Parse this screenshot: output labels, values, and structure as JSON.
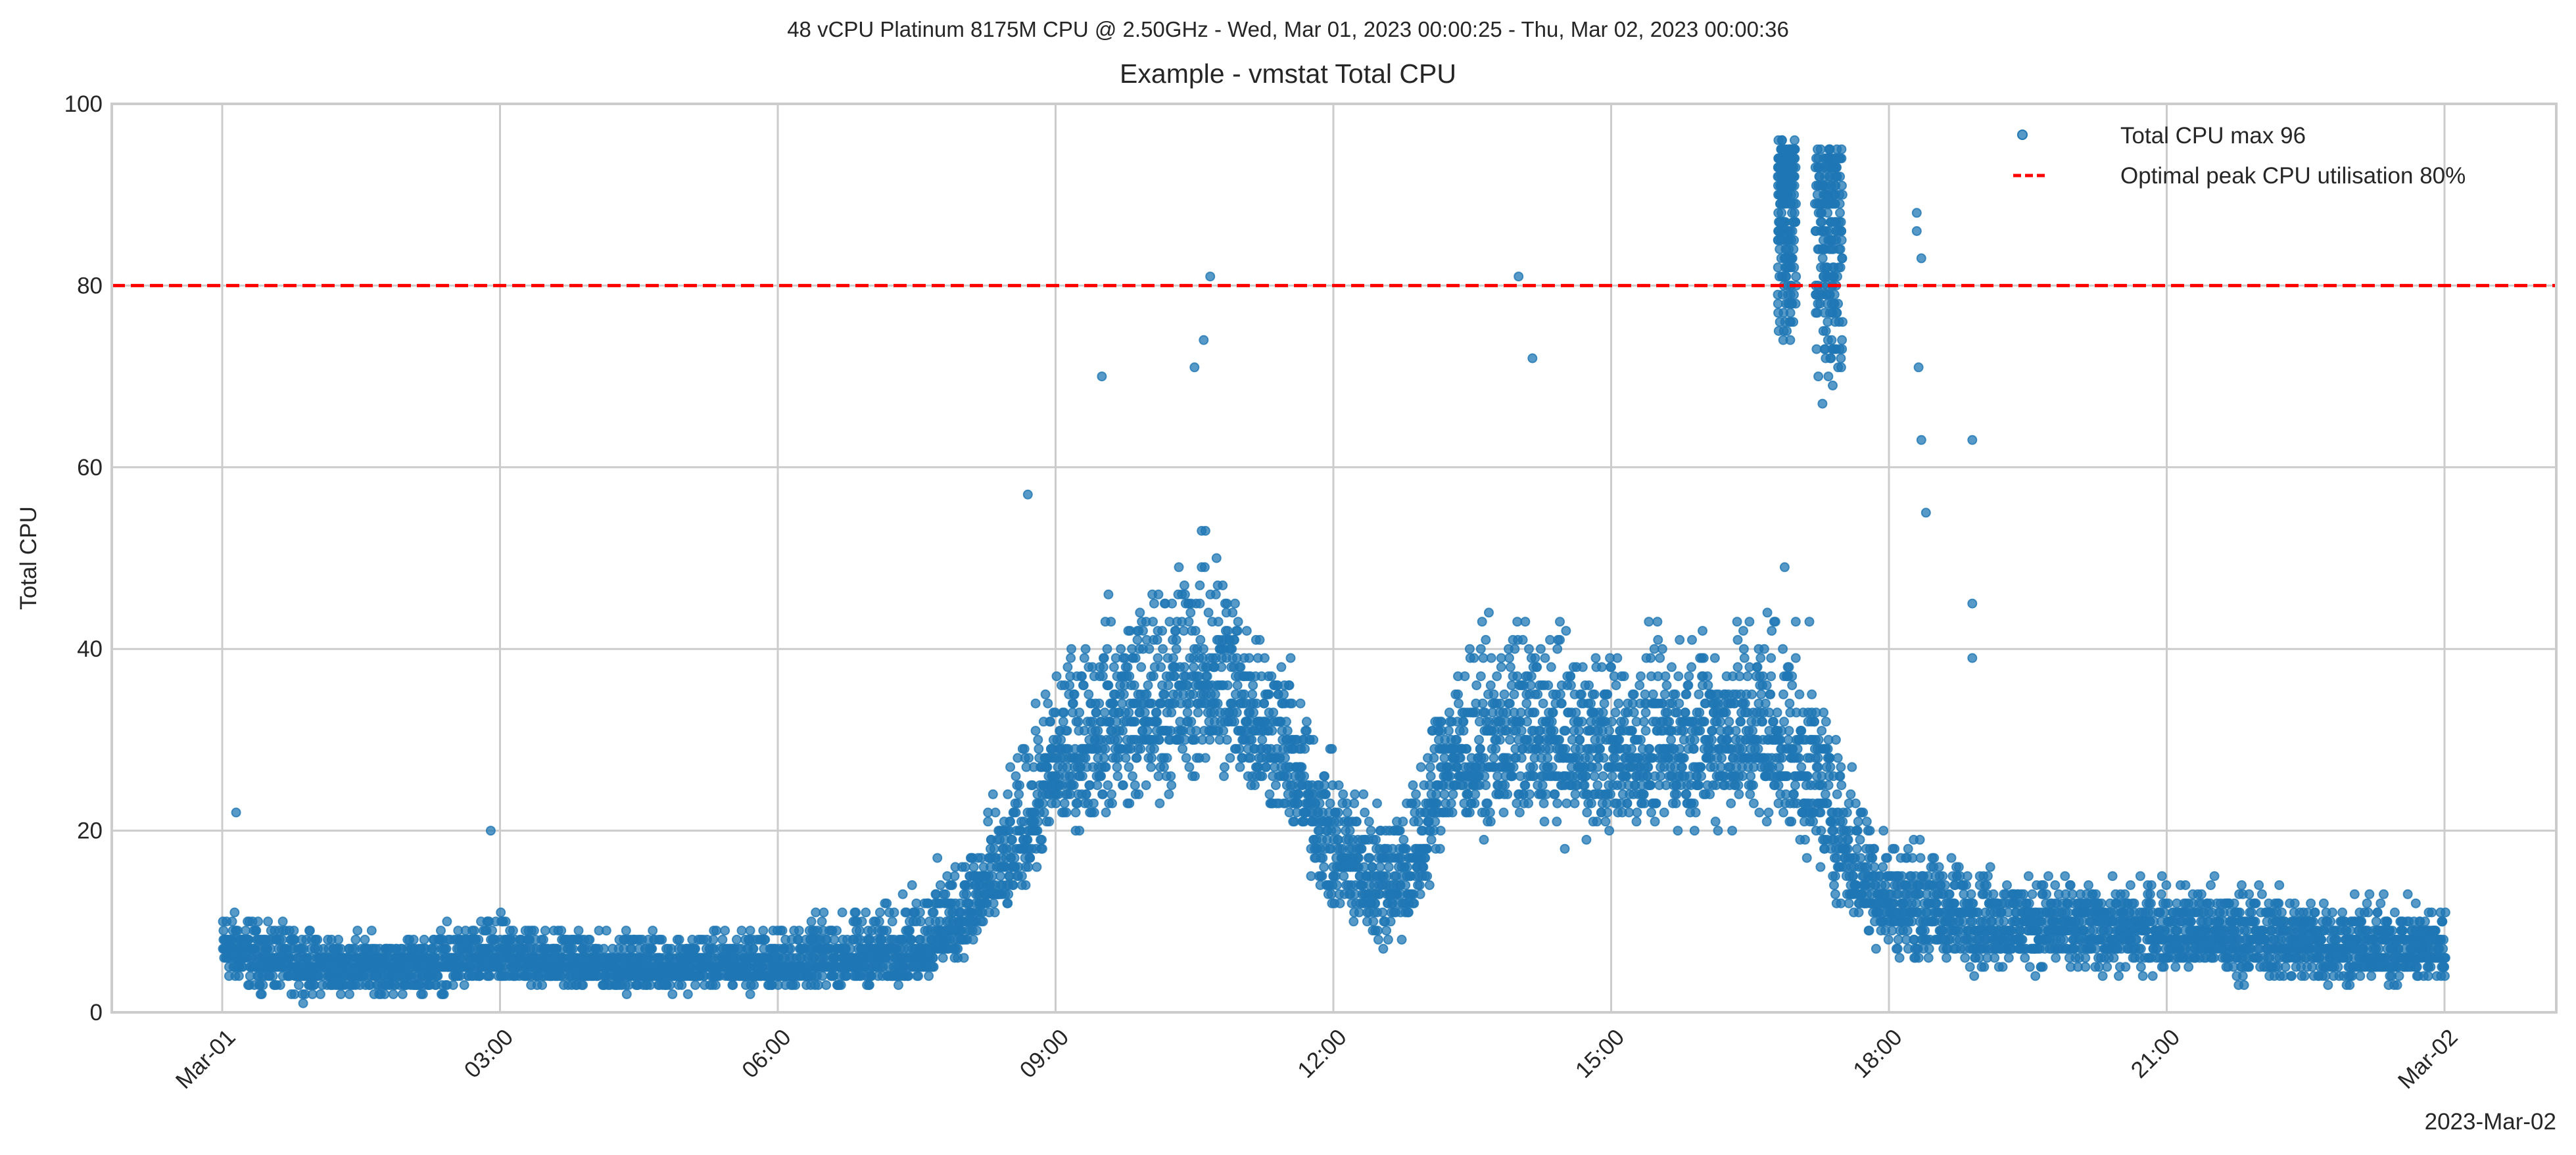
{
  "chart_data": {
    "type": "scatter",
    "suptitle": "48 vCPU Platinum 8175M CPU @ 2.50GHz -  Wed, Mar 01, 2023 00:00:25 - Thu, Mar 02, 2023 00:00:36",
    "title": "Example - vmstat Total CPU",
    "xlabel": "",
    "ylabel": "Total CPU",
    "x_offset_label": "2023-Mar-02",
    "ylim": [
      0,
      100
    ],
    "xlim_hours": [
      -1.19,
      25.2
    ],
    "yticks": [
      0,
      20,
      40,
      60,
      80,
      100
    ],
    "xticks": [
      {
        "hour": 0,
        "label": "Mar-01"
      },
      {
        "hour": 3,
        "label": "03:00"
      },
      {
        "hour": 6,
        "label": "06:00"
      },
      {
        "hour": 9,
        "label": "09:00"
      },
      {
        "hour": 12,
        "label": "12:00"
      },
      {
        "hour": 15,
        "label": "15:00"
      },
      {
        "hour": 18,
        "label": "18:00"
      },
      {
        "hour": 21,
        "label": "21:00"
      },
      {
        "hour": 24,
        "label": "Mar-02"
      }
    ],
    "grid": true,
    "legend_position": "top-right",
    "series": [
      {
        "name": "Total CPU max 96",
        "kind": "scatter",
        "color": "#1f77b4",
        "max": 96,
        "profile_hours": [
          0,
          0.5,
          1,
          2,
          3,
          4,
          5,
          6,
          7,
          7.5,
          8,
          8.5,
          9,
          9.5,
          10,
          10.7,
          11,
          11.5,
          12,
          12.5,
          12.9,
          13.2,
          14,
          15,
          16,
          16.8,
          17.3,
          17.6,
          18,
          19,
          20,
          21,
          22,
          23,
          24
        ],
        "profile_median": [
          7,
          6,
          5,
          5,
          6,
          5,
          5,
          5,
          6,
          7,
          10,
          16,
          27,
          31,
          33,
          37,
          34,
          28,
          18,
          14,
          16,
          27,
          30,
          28,
          30,
          30,
          24,
          16,
          12,
          10,
          9,
          9,
          8,
          7,
          7
        ],
        "profile_low": [
          2,
          1,
          1,
          1,
          2,
          2,
          2,
          2,
          2,
          2,
          5,
          10,
          16,
          19,
          20,
          22,
          22,
          18,
          8,
          5,
          7,
          18,
          18,
          17,
          18,
          18,
          12,
          8,
          5,
          3,
          3,
          3,
          2,
          2,
          2
        ],
        "profile_high": [
          13,
          11,
          10,
          9,
          12,
          10,
          10,
          11,
          13,
          15,
          22,
          28,
          42,
          48,
          52,
          58,
          52,
          42,
          30,
          26,
          30,
          42,
          48,
          44,
          46,
          52,
          40,
          30,
          22,
          18,
          16,
          16,
          16,
          14,
          14
        ],
        "spike_bursts": [
          {
            "from_hour": 16.8,
            "to_hour": 17.0,
            "low": 72,
            "high": 96
          },
          {
            "from_hour": 17.2,
            "to_hour": 17.5,
            "low": 66,
            "high": 95
          }
        ],
        "outliers": [
          [
            0.15,
            22
          ],
          [
            2.9,
            20
          ],
          [
            8.7,
            57
          ],
          [
            9.5,
            70
          ],
          [
            10.6,
            74
          ],
          [
            10.67,
            81
          ],
          [
            10.5,
            71
          ],
          [
            14.0,
            81
          ],
          [
            14.15,
            72
          ],
          [
            18.3,
            88
          ],
          [
            18.3,
            86
          ],
          [
            18.35,
            83
          ],
          [
            18.32,
            71
          ],
          [
            18.35,
            63
          ],
          [
            18.4,
            55
          ],
          [
            18.9,
            63
          ],
          [
            18.9,
            45
          ],
          [
            18.9,
            39
          ]
        ]
      },
      {
        "name": "Optimal peak CPU utilisation 80%",
        "kind": "hline",
        "color": "#ff0000",
        "value": 80
      }
    ]
  }
}
